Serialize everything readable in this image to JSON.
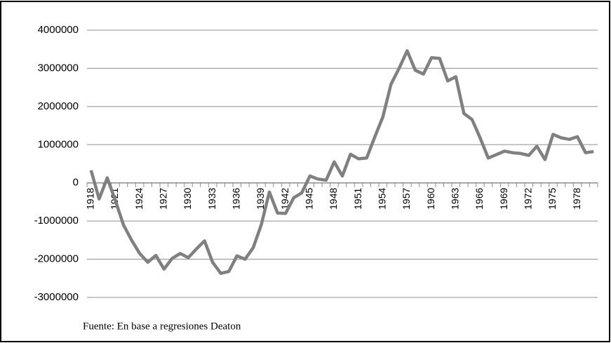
{
  "chart_data": {
    "type": "line",
    "categories": [
      "1918",
      null,
      null,
      "1921",
      null,
      null,
      "1924",
      null,
      null,
      "1927",
      null,
      null,
      "1930",
      null,
      null,
      "1933",
      null,
      null,
      "1936",
      null,
      null,
      "1939",
      null,
      null,
      "1942",
      null,
      null,
      "1945",
      null,
      null,
      "1948",
      null,
      null,
      "1951",
      null,
      null,
      "1954",
      null,
      null,
      "1957",
      null,
      null,
      "1960",
      null,
      null,
      "1963",
      null,
      null,
      "1966",
      null,
      null,
      "1969",
      null,
      null,
      "1972",
      null,
      null,
      "1975",
      null,
      null,
      "1978",
      null,
      null
    ],
    "series": [
      {
        "color": "#808080",
        "values": [
          330000,
          -420000,
          130000,
          -460000,
          -1100000,
          -1500000,
          -1850000,
          -2080000,
          -1900000,
          -2260000,
          -1980000,
          -1850000,
          -1960000,
          -1730000,
          -1520000,
          -2080000,
          -2370000,
          -2320000,
          -1910000,
          -2000000,
          -1700000,
          -1100000,
          -240000,
          -790000,
          -800000,
          -390000,
          -260000,
          180000,
          100000,
          70000,
          550000,
          180000,
          750000,
          630000,
          650000,
          1200000,
          1730000,
          2580000,
          3000000,
          3460000,
          2950000,
          2850000,
          3280000,
          3260000,
          2670000,
          2780000,
          1820000,
          1660000,
          1180000,
          650000,
          740000,
          830000,
          790000,
          770000,
          720000,
          960000,
          610000,
          1270000,
          1180000,
          1140000,
          1210000,
          790000,
          820000
        ]
      }
    ],
    "ylim": [
      -3000000,
      4000000
    ],
    "yticks": [
      -3000000,
      -2000000,
      -1000000,
      0,
      1000000,
      2000000,
      3000000,
      4000000
    ],
    "grid": true,
    "note": "Fuente: En base a regresiones Deaton"
  }
}
